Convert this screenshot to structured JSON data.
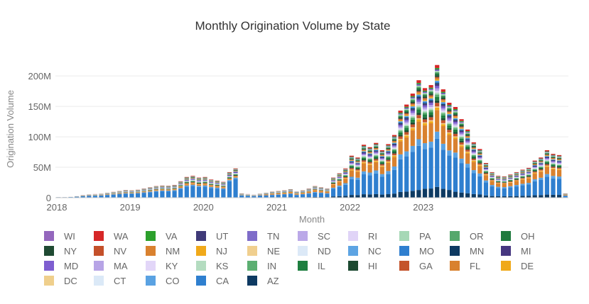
{
  "chart_data": {
    "type": "bar",
    "stacked": true,
    "title": "Monthly Origination Volume by State",
    "xlabel": "Month",
    "ylabel": "Origination Volume",
    "ylim": [
      0,
      220000000
    ],
    "yticks": [
      0,
      50000000,
      100000000,
      150000000,
      200000000
    ],
    "ytick_labels": [
      "0",
      "50M",
      "100M",
      "150M",
      "200M"
    ],
    "xticks": [
      "2018",
      "2019",
      "2020",
      "2021",
      "2022",
      "2023"
    ],
    "grid": true,
    "legend_position": "bottom",
    "start_month": "2018-01",
    "totals": [
      1500000.0,
      1500000.0,
      2000000.0,
      3000000.0,
      4500000.0,
      5500000.0,
      6000000.0,
      6500000.0,
      8000000.0,
      9500000.0,
      11000000.0,
      12500000.0,
      12000000.0,
      13000000.0,
      15000000.0,
      17000000.0,
      19000000.0,
      20000000.0,
      19500000.0,
      21000000.0,
      27000000.0,
      34000000.0,
      36000000.0,
      33000000.0,
      34000000.0,
      30000000.0,
      28000000.0,
      26000000.0,
      42000000.0,
      48000000.0,
      7000000.0,
      6000000.0,
      5000000.0,
      6500000.0,
      8000000.0,
      10000000.0,
      11000000.0,
      12000000.0,
      14000000.0,
      10000000.0,
      12000000.0,
      15000000.0,
      19000000.0,
      17000000.0,
      15000000.0,
      33000000.0,
      40000000.0,
      48000000.0,
      69000000.0,
      66000000.0,
      87000000.0,
      83000000.0,
      90000000.0,
      78000000.0,
      88000000.0,
      103000000.0,
      143000000.0,
      153000000.0,
      171000000.0,
      193000000.0,
      180000000.0,
      185000000.0,
      218000000.0,
      178000000.0,
      156000000.0,
      149000000.0,
      129000000.0,
      112000000.0,
      91000000.0,
      80000000.0,
      57000000.0,
      42000000.0,
      36000000.0,
      35000000.0,
      38000000.0,
      42000000.0,
      46000000.0,
      49000000.0,
      61000000.0,
      66000000.0,
      78000000.0,
      72000000.0,
      70000000.0,
      7000000.0
    ],
    "state_colors": {
      "WI": "#9467bd",
      "WA": "#d62728",
      "VA": "#2ca02c",
      "UT": "#3f3a78",
      "TN": "#7e6cc9",
      "SC": "#bba9e8",
      "RI": "#e0d4f7",
      "PA": "#a6d8b6",
      "OR": "#55a86c",
      "OH": "#1f7a3d",
      "NY": "#1f4a32",
      "NV": "#c4502a",
      "NM": "#d9812f",
      "NJ": "#f0a91a",
      "NE": "#f0cf8f",
      "ND": "#dce9f7",
      "NC": "#5da4e3",
      "MO": "#2f7fcf",
      "MN": "#0e3a62",
      "MI": "#463680",
      "MD": "#7e5ed0",
      "MA": "#b7a4e6",
      "KY": "#e2d6f8",
      "KS": "#b4dcc0",
      "IN": "#5caf72",
      "IL": "#1e7f40",
      "HI": "#1d4a31",
      "GA": "#c4542c",
      "FL": "#d9812f",
      "DE": "#f0a91a",
      "DC": "#efcf8c",
      "CT": "#dbe9f7",
      "CO": "#5aa2e2",
      "CA": "#2f7fcf",
      "AZ": "#0e3a62"
    },
    "legend_rows": [
      [
        "WI",
        "WA",
        "VA",
        "UT",
        "TN",
        "SC",
        "RI",
        "PA",
        "OR",
        "OH"
      ],
      [
        "NY",
        "NV",
        "NM",
        "NJ",
        "NE",
        "ND",
        "NC",
        "MO",
        "MN",
        "MI"
      ],
      [
        "MD",
        "MA",
        "KY",
        "KS",
        "IN",
        "IL",
        "HI",
        "GA",
        "FL",
        "DE"
      ],
      [
        "DC",
        "CT",
        "CO",
        "CA",
        "AZ"
      ]
    ]
  }
}
